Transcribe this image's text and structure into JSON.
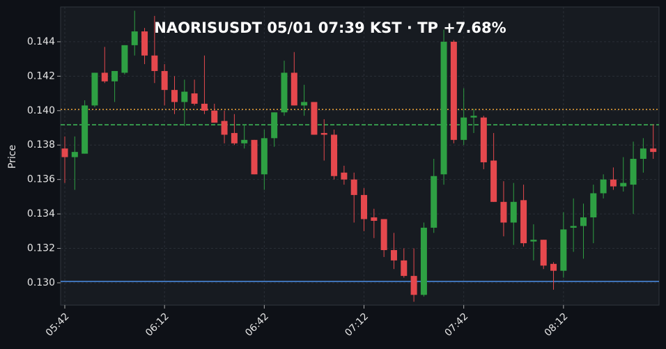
{
  "chart_data": {
    "type": "candlestick",
    "title": "NAORISUSDT  05/01 07:39 KST  ·  TP +7.68%",
    "y_label": "Price",
    "categories": [
      "05:42",
      null,
      null,
      null,
      null,
      null,
      null,
      null,
      null,
      null,
      "06:12",
      null,
      null,
      null,
      null,
      null,
      null,
      null,
      null,
      null,
      "06:42",
      null,
      null,
      null,
      null,
      null,
      null,
      null,
      null,
      null,
      "07:12",
      null,
      null,
      null,
      null,
      null,
      null,
      null,
      null,
      null,
      "07:42",
      null,
      null,
      null,
      null,
      null,
      null,
      null,
      null,
      null,
      "08:12",
      null,
      null,
      null,
      null,
      null,
      null,
      null,
      null,
      null
    ],
    "open": [
      0.1378,
      0.1373,
      0.1375,
      0.1403,
      0.1422,
      0.1417,
      0.1422,
      0.1438,
      0.1446,
      0.1432,
      0.1423,
      0.1412,
      0.1405,
      0.141,
      0.1404,
      0.14,
      0.1394,
      0.1387,
      0.1381,
      0.1383,
      0.1363,
      0.1384,
      0.1399,
      0.1422,
      0.1403,
      0.1405,
      0.1387,
      0.1386,
      0.1364,
      0.136,
      0.1351,
      0.1338,
      0.1337,
      0.1319,
      0.1313,
      0.1304,
      0.1293,
      0.1332,
      0.1363,
      0.144,
      0.1383,
      0.1396,
      0.1396,
      0.1371,
      0.1347,
      0.1335,
      0.1348,
      0.1324,
      0.1325,
      0.1311,
      0.1307,
      0.1332,
      0.1333,
      0.1338,
      0.1352,
      0.136,
      0.1356,
      0.1357,
      0.1372,
      0.1378
    ],
    "high": [
      0.1385,
      0.1385,
      0.1406,
      0.1422,
      0.1437,
      0.1423,
      0.1438,
      0.1458,
      0.1448,
      0.1455,
      0.1427,
      0.142,
      0.1418,
      0.1418,
      0.1432,
      0.1404,
      0.14,
      0.1398,
      0.1392,
      0.1383,
      0.1389,
      0.1399,
      0.1429,
      0.1434,
      0.1415,
      0.1405,
      0.1395,
      0.1389,
      0.1368,
      0.1364,
      0.1355,
      0.1343,
      0.1337,
      0.1329,
      0.132,
      0.132,
      0.1335,
      0.1372,
      0.1447,
      0.1441,
      0.1413,
      0.1401,
      0.1397,
      0.1387,
      0.1359,
      0.1358,
      0.1357,
      0.1334,
      0.1325,
      0.1312,
      0.1341,
      0.1349,
      0.1346,
      0.1357,
      0.1363,
      0.1367,
      0.1373,
      0.1382,
      0.1384,
      0.1392
    ],
    "low": [
      0.1358,
      0.1354,
      0.1375,
      0.1402,
      0.1416,
      0.1405,
      0.1421,
      0.1432,
      0.1427,
      0.1416,
      0.1403,
      0.1398,
      0.1391,
      0.1403,
      0.1398,
      0.1393,
      0.1381,
      0.138,
      0.1378,
      0.1363,
      0.1354,
      0.1379,
      0.1397,
      0.1403,
      0.1397,
      0.1386,
      0.1371,
      0.136,
      0.1357,
      0.1335,
      0.133,
      0.1326,
      0.1315,
      0.1308,
      0.1303,
      0.1289,
      0.1292,
      0.1329,
      0.1357,
      0.1381,
      0.138,
      0.1387,
      0.1366,
      0.1347,
      0.1327,
      0.1322,
      0.1321,
      0.1313,
      0.1308,
      0.1296,
      0.1303,
      0.1318,
      0.1314,
      0.1323,
      0.1349,
      0.1354,
      0.1353,
      0.134,
      0.1364,
      0.1372
    ],
    "close": [
      0.1373,
      0.1376,
      0.1403,
      0.1422,
      0.1417,
      0.1423,
      0.1438,
      0.1446,
      0.1432,
      0.1423,
      0.1412,
      0.1405,
      0.1411,
      0.1404,
      0.14,
      0.1393,
      0.1386,
      0.1381,
      0.1383,
      0.1363,
      0.1384,
      0.1399,
      0.1422,
      0.1403,
      0.1405,
      0.1386,
      0.1386,
      0.1362,
      0.136,
      0.1351,
      0.1337,
      0.1336,
      0.1319,
      0.1313,
      0.1304,
      0.1293,
      0.1332,
      0.1362,
      0.144,
      0.1383,
      0.1396,
      0.1397,
      0.137,
      0.1347,
      0.1335,
      0.1347,
      0.1323,
      0.1325,
      0.131,
      0.1307,
      0.1331,
      0.1333,
      0.1338,
      0.1352,
      0.136,
      0.1356,
      0.1358,
      0.1372,
      0.1378,
      0.1376
    ],
    "up_color": "#2ea043",
    "down_color": "#e5484d",
    "ylim": [
      0.128705,
      0.14602
    ],
    "yticks": [
      {
        "value": 0.13,
        "label": "0.130"
      },
      {
        "value": 0.132,
        "label": "0.132"
      },
      {
        "value": 0.134,
        "label": "0.134"
      },
      {
        "value": 0.136,
        "label": "0.136"
      },
      {
        "value": 0.138,
        "label": "0.138"
      },
      {
        "value": 0.14,
        "label": "0.140"
      },
      {
        "value": 0.142,
        "label": "0.142"
      },
      {
        "value": 0.144,
        "label": "0.144"
      }
    ],
    "grid": true,
    "lines": [
      {
        "value": 0.14007,
        "color": "#f0a53a",
        "style": "dotted"
      },
      {
        "value": 0.13918,
        "color": "#3fbf5a",
        "style": "dashed"
      },
      {
        "value": 0.13008,
        "color": "#4d8fe8",
        "style": "solid"
      }
    ]
  }
}
